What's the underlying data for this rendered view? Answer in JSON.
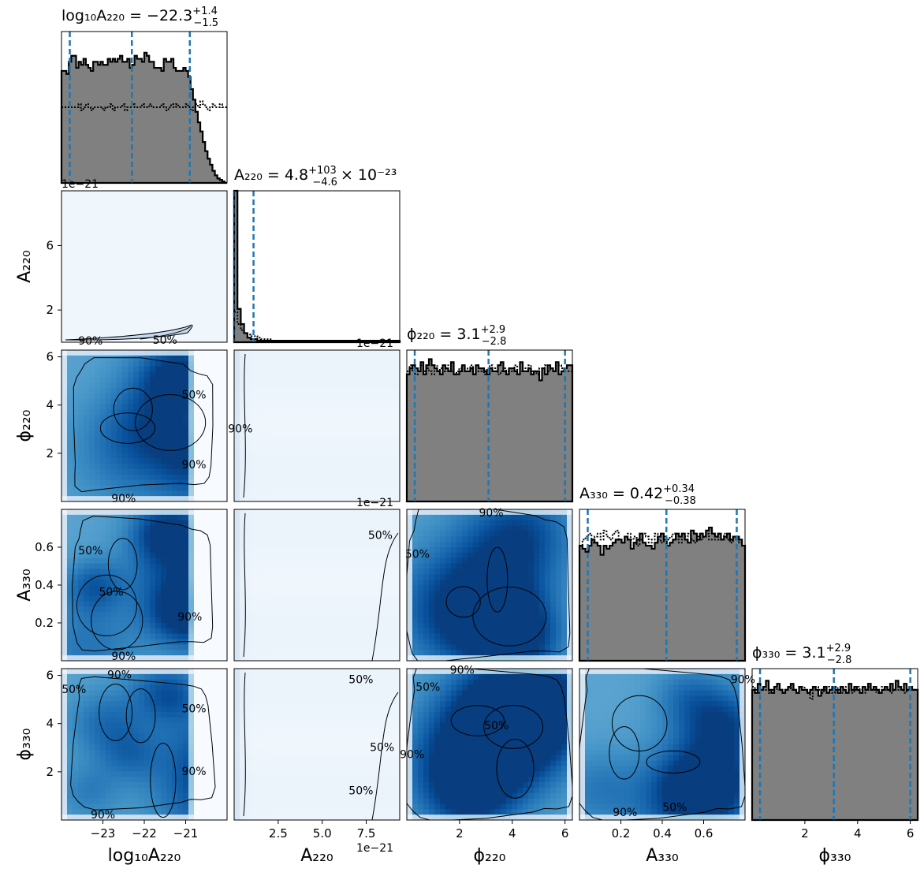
{
  "chart_data": {
    "type": "corner",
    "parameters": [
      {
        "key": "log10A220",
        "label": "log₁₀A₂₂₀",
        "range": [
          -24.0,
          -20.0
        ],
        "ticks": [
          -23,
          -22,
          -21
        ],
        "tick_labels": [
          "−23",
          "−22",
          "−21"
        ]
      },
      {
        "key": "A220",
        "label": "A₂₂₀",
        "range": [
          0.0,
          9.4
        ],
        "offset": "1e−21",
        "ticks": [
          2.5,
          5.0,
          7.5
        ],
        "tick_labels": [
          "2.5",
          "5.0",
          "7.5"
        ],
        "y_ticks": [
          2,
          6
        ],
        "y_tick_labels": [
          "2",
          "6"
        ]
      },
      {
        "key": "phi220",
        "label": "ϕ₂₂₀",
        "range": [
          0.0,
          6.28
        ],
        "ticks": [
          2,
          4,
          6
        ],
        "tick_labels": [
          "2",
          "4",
          "6"
        ]
      },
      {
        "key": "A330",
        "label": "A₃₃₀",
        "range": [
          0.0,
          0.8
        ],
        "ticks": [
          0.2,
          0.4,
          0.6
        ],
        "tick_labels": [
          "0.2",
          "0.4",
          "0.6"
        ]
      },
      {
        "key": "phi330",
        "label": "ϕ₃₃₀",
        "range": [
          0.0,
          6.28
        ],
        "ticks": [
          2,
          4,
          6
        ],
        "tick_labels": [
          "2",
          "4",
          "6"
        ]
      }
    ],
    "titles": [
      {
        "name": "log₁₀A₂₂₀",
        "median": "−22.3",
        "plus": "+1.4",
        "minus": "−1.5",
        "suffix": ""
      },
      {
        "name": "A₂₂₀",
        "median": "4.8",
        "plus": "+103",
        "minus": "−4.6",
        "suffix": "× 10⁻²³"
      },
      {
        "name": "ϕ₂₂₀",
        "median": "3.1",
        "plus": "+2.9",
        "minus": "−2.8",
        "suffix": ""
      },
      {
        "name": "A₃₃₀",
        "median": "0.42",
        "plus": "+0.34",
        "minus": "−0.38",
        "suffix": ""
      },
      {
        "name": "ϕ₃₃₀",
        "median": "3.1",
        "plus": "+2.9",
        "minus": "−2.8",
        "suffix": ""
      }
    ],
    "quantile_lines": [
      [
        -23.8,
        -22.3,
        -20.9
      ],
      [
        0.0,
        1.1
      ],
      [
        0.3,
        3.1,
        6.0
      ],
      [
        0.04,
        0.42,
        0.76
      ],
      [
        0.3,
        3.1,
        6.0
      ]
    ],
    "histograms": [
      {
        "posterior": [
          0.74,
          0.74,
          0.72,
          0.8,
          0.84,
          0.84,
          0.76,
          0.8,
          0.78,
          0.82,
          0.78,
          0.76,
          0.74,
          0.8,
          0.8,
          0.78,
          0.8,
          0.78,
          0.78,
          0.82,
          0.8,
          0.82,
          0.8,
          0.82,
          0.84,
          0.8,
          0.8,
          0.82,
          0.76,
          0.78,
          0.84,
          0.82,
          0.82,
          0.8,
          0.86,
          0.84,
          0.8,
          0.8,
          0.76,
          0.76,
          0.76,
          0.74,
          0.82,
          0.8,
          0.8,
          0.82,
          0.76,
          0.74,
          0.74,
          0.74,
          0.76,
          0.74,
          0.7,
          0.62,
          0.55,
          0.47,
          0.4,
          0.34,
          0.27,
          0.21,
          0.16,
          0.12,
          0.08,
          0.05,
          0.03,
          0.02,
          0.01,
          0.0
        ],
        "prior": [
          0.5,
          0.5,
          0.5,
          0.5,
          0.5,
          0.5,
          0.5,
          0.52,
          0.48,
          0.5,
          0.52,
          0.5,
          0.48,
          0.5,
          0.5,
          0.5,
          0.5,
          0.48,
          0.5,
          0.5,
          0.52,
          0.48,
          0.5,
          0.5,
          0.5,
          0.52,
          0.48,
          0.5,
          0.5,
          0.52,
          0.5,
          0.5,
          0.5,
          0.52,
          0.5,
          0.5,
          0.52,
          0.5,
          0.5,
          0.5,
          0.5,
          0.52,
          0.5,
          0.48,
          0.5,
          0.52,
          0.5,
          0.52,
          0.5,
          0.5,
          0.5,
          0.52,
          0.5,
          0.48,
          0.5,
          0.52,
          0.5,
          0.54,
          0.52,
          0.5,
          0.48,
          0.5,
          0.52,
          0.5,
          0.5,
          0.52,
          0.5,
          0.5
        ]
      },
      {
        "posterior": [
          1.0,
          0.22,
          0.12,
          0.06,
          0.03,
          0.02,
          0.02,
          0.01,
          0.01,
          0.01,
          0.01,
          0.01,
          0.01,
          0.01,
          0.01,
          0.01,
          0.01,
          0.01,
          0.01,
          0.01,
          0.01,
          0.01,
          0.01,
          0.01,
          0.01,
          0.01,
          0.01,
          0.01,
          0.01,
          0.01,
          0.01,
          0.01,
          0.01,
          0.01,
          0.01,
          0.01,
          0.01,
          0.01,
          0.01,
          0.01,
          0.01,
          0.01,
          0.01,
          0.01,
          0.01,
          0.01,
          0.01,
          0.01,
          0.01,
          0.01
        ],
        "prior": [
          0.2,
          0.12,
          0.08,
          0.06,
          0.05,
          0.04,
          0.04,
          0.03,
          0.02,
          0.02,
          0.02,
          0.01,
          0.01,
          0.01,
          0.01,
          0.01,
          0.01,
          0.01,
          0.01,
          0.01,
          0.01,
          0.01,
          0.01,
          0.01,
          0.01,
          0.01,
          0.01,
          0.01,
          0.01,
          0.01,
          0.01,
          0.01,
          0.01,
          0.01,
          0.01,
          0.01,
          0.01,
          0.01,
          0.01,
          0.01,
          0.01,
          0.01,
          0.01,
          0.01,
          0.01,
          0.01,
          0.01,
          0.01,
          0.01,
          0.01
        ]
      },
      {
        "posterior": [
          0.84,
          0.88,
          0.9,
          0.88,
          0.86,
          0.92,
          0.84,
          0.9,
          0.94,
          0.9,
          0.88,
          0.86,
          0.84,
          0.9,
          0.88,
          0.86,
          0.92,
          0.84,
          0.84,
          0.86,
          0.9,
          0.86,
          0.86,
          0.88,
          0.84,
          0.9,
          0.88,
          0.88,
          0.86,
          0.84,
          0.88,
          0.86,
          0.86,
          0.9,
          0.92,
          0.86,
          0.84,
          0.88,
          0.88,
          0.86,
          0.84,
          0.92,
          0.86,
          0.86,
          0.88,
          0.84,
          0.86,
          0.86,
          0.8,
          0.88,
          0.84,
          0.9,
          0.88,
          0.86,
          0.92,
          0.84,
          0.86,
          0.88,
          0.9,
          0.9
        ],
        "prior": [
          0.86,
          0.9,
          0.86,
          0.84,
          0.88,
          0.9,
          0.86,
          0.88,
          0.86,
          0.84,
          0.9,
          0.86,
          0.88,
          0.86,
          0.88,
          0.9,
          0.86,
          0.84,
          0.86,
          0.88,
          0.86,
          0.88,
          0.86,
          0.9,
          0.84,
          0.86,
          0.88,
          0.86,
          0.84,
          0.88,
          0.9,
          0.86,
          0.88,
          0.84,
          0.86,
          0.88,
          0.86,
          0.88,
          0.86,
          0.9,
          0.84,
          0.86,
          0.88,
          0.88,
          0.9,
          0.86,
          0.86,
          0.84,
          0.88,
          0.86,
          0.9,
          0.86,
          0.88,
          0.86,
          0.86,
          0.9,
          0.88,
          0.86,
          0.86,
          0.86
        ]
      },
      {
        "posterior": [
          0.76,
          0.74,
          0.72,
          0.76,
          0.8,
          0.78,
          0.76,
          0.7,
          0.76,
          0.74,
          0.76,
          0.78,
          0.8,
          0.8,
          0.78,
          0.82,
          0.8,
          0.74,
          0.78,
          0.8,
          0.84,
          0.78,
          0.76,
          0.76,
          0.74,
          0.78,
          0.82,
          0.84,
          0.8,
          0.76,
          0.78,
          0.8,
          0.84,
          0.82,
          0.84,
          0.8,
          0.78,
          0.86,
          0.84,
          0.8,
          0.84,
          0.82,
          0.86,
          0.88,
          0.84,
          0.82,
          0.84,
          0.8,
          0.82,
          0.84,
          0.8,
          0.82,
          0.82,
          0.8,
          0.76
        ],
        "prior": [
          0.76,
          0.8,
          0.82,
          0.84,
          0.78,
          0.82,
          0.84,
          0.8,
          0.86,
          0.82,
          0.8,
          0.84,
          0.86,
          0.8,
          0.78,
          0.8,
          0.84,
          0.8,
          0.82,
          0.76,
          0.8,
          0.84,
          0.82,
          0.78,
          0.8,
          0.84,
          0.8,
          0.78,
          0.82,
          0.8,
          0.82,
          0.84,
          0.8,
          0.78,
          0.8,
          0.82,
          0.84,
          0.8,
          0.78,
          0.82,
          0.8,
          0.82,
          0.84,
          0.8,
          0.8,
          0.82,
          0.8,
          0.8,
          0.84,
          0.8,
          0.78,
          0.82,
          0.8,
          0.78,
          0.76
        ]
      },
      {
        "posterior": [
          0.86,
          0.84,
          0.9,
          0.86,
          0.88,
          0.92,
          0.86,
          0.84,
          0.88,
          0.9,
          0.86,
          0.84,
          0.86,
          0.88,
          0.9,
          0.86,
          0.84,
          0.88,
          0.86,
          0.86,
          0.84,
          0.86,
          0.88,
          0.86,
          0.82,
          0.86,
          0.88,
          0.84,
          0.86,
          0.88,
          0.86,
          0.84,
          0.88,
          0.86,
          0.84,
          0.9,
          0.86,
          0.88,
          0.86,
          0.84,
          0.88,
          0.86,
          0.9,
          0.86,
          0.88,
          0.86,
          0.84,
          0.86,
          0.88,
          0.86,
          0.9,
          0.86,
          0.92,
          0.88,
          0.86,
          0.9,
          0.86,
          0.88,
          0.86,
          0.86
        ],
        "prior": [
          0.88,
          0.86,
          0.84,
          0.86,
          0.88,
          0.86,
          0.84,
          0.86,
          0.88,
          0.86,
          0.86,
          0.84,
          0.86,
          0.88,
          0.86,
          0.86,
          0.84,
          0.86,
          0.88,
          0.86,
          0.84,
          0.8,
          0.86,
          0.88,
          0.86,
          0.84,
          0.86,
          0.88,
          0.86,
          0.84,
          0.88,
          0.86,
          0.84,
          0.86,
          0.88,
          0.86,
          0.84,
          0.86,
          0.88,
          0.86,
          0.84,
          0.86,
          0.88,
          0.86,
          0.86,
          0.84,
          0.86,
          0.88,
          0.86,
          0.86,
          0.84,
          0.86,
          0.88,
          0.86,
          0.86,
          0.84,
          0.86,
          0.88,
          0.86,
          0.86
        ]
      }
    ],
    "contour_levels": [
      "90%",
      "50%"
    ],
    "contour_label_positions": [
      {
        "row": 1,
        "col": 0,
        "labels": [
          {
            "text": "90%",
            "x": -23.3,
            "y": 0.05
          },
          {
            "text": "50%",
            "x": -21.5,
            "y": 0.1
          }
        ]
      },
      {
        "row": 2,
        "col": 0,
        "labels": [
          {
            "text": "90%",
            "x": -22.5,
            "y": 0.1
          },
          {
            "text": "90%",
            "x": -20.8,
            "y": 1.5
          },
          {
            "text": "50%",
            "x": -20.8,
            "y": 4.4
          }
        ]
      },
      {
        "row": 2,
        "col": 1,
        "labels": [
          {
            "text": "90%",
            "x": 0.35,
            "y": 3.0
          }
        ]
      },
      {
        "row": 3,
        "col": 0,
        "labels": [
          {
            "text": "50%",
            "x": -23.3,
            "y": 0.58
          },
          {
            "text": "50%",
            "x": -22.8,
            "y": 0.36
          },
          {
            "text": "90%",
            "x": -20.9,
            "y": 0.23
          },
          {
            "text": "90%",
            "x": -22.5,
            "y": 0.02
          }
        ]
      },
      {
        "row": 3,
        "col": 1,
        "labels": [
          {
            "text": "50%",
            "x": 8.3,
            "y": 0.66
          }
        ]
      },
      {
        "row": 3,
        "col": 2,
        "labels": [
          {
            "text": "90%",
            "x": 3.2,
            "y": 0.78
          },
          {
            "text": "50%",
            "x": 0.4,
            "y": 0.56
          }
        ]
      },
      {
        "row": 4,
        "col": 0,
        "labels": [
          {
            "text": "50%",
            "x": -23.7,
            "y": 5.4
          },
          {
            "text": "90%",
            "x": -22.6,
            "y": 6.0
          },
          {
            "text": "50%",
            "x": -20.8,
            "y": 4.6
          },
          {
            "text": "90%",
            "x": -20.8,
            "y": 2.0
          },
          {
            "text": "90%",
            "x": -23.0,
            "y": 0.2
          }
        ]
      },
      {
        "row": 4,
        "col": 1,
        "labels": [
          {
            "text": "50%",
            "x": 7.2,
            "y": 5.8
          },
          {
            "text": "50%",
            "x": 8.4,
            "y": 3.0
          },
          {
            "text": "50%",
            "x": 7.2,
            "y": 1.2
          }
        ]
      },
      {
        "row": 4,
        "col": 2,
        "labels": [
          {
            "text": "90%",
            "x": 2.1,
            "y": 6.2
          },
          {
            "text": "50%",
            "x": 0.8,
            "y": 5.5
          },
          {
            "text": "50%",
            "x": 3.4,
            "y": 3.9
          },
          {
            "text": "90%",
            "x": 0.2,
            "y": 2.7
          }
        ]
      },
      {
        "row": 4,
        "col": 3,
        "labels": [
          {
            "text": "90%",
            "x": 0.22,
            "y": 0.3
          },
          {
            "text": "50%",
            "x": 0.46,
            "y": 0.5
          },
          {
            "text": "90%",
            "x": 0.79,
            "y": 5.8
          }
        ]
      }
    ],
    "colors": {
      "histogram_fill": "#808080",
      "quantile_line": "#1f77b4",
      "density": "Blues",
      "contour": "#000000"
    }
  }
}
